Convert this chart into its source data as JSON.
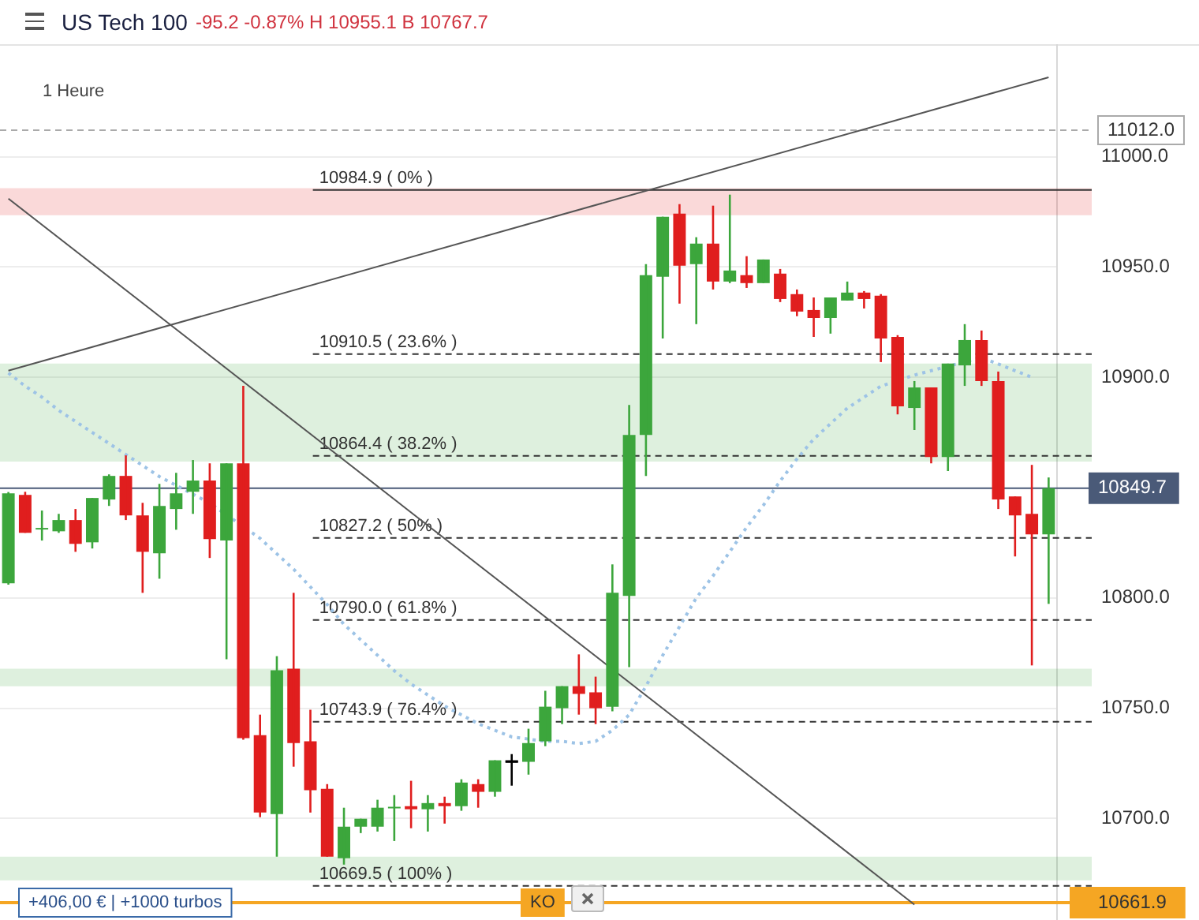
{
  "chart_data": {
    "type": "candlestick",
    "title": "US Tech 100",
    "subtitle": "-95.2  -0.87% H 10955.1 B 10767.7",
    "categories": [
      null,
      null,
      null,
      null,
      null,
      null,
      null,
      null,
      null,
      null,
      null,
      null,
      null,
      null,
      null,
      null,
      null,
      null,
      null,
      null,
      null,
      null,
      null,
      null,
      null,
      null,
      null,
      null,
      null,
      null,
      null,
      null,
      null,
      null,
      null,
      null,
      null,
      null,
      null,
      null,
      null,
      null,
      null,
      null,
      null,
      null,
      null,
      null,
      null,
      null,
      null,
      null,
      null,
      null,
      null,
      null,
      null,
      null,
      null,
      null,
      null,
      null,
      null
    ],
    "ohlc": [
      [
        10806.6,
        10848.0,
        10806.0,
        10847.4
      ],
      [
        10846.7,
        10848.1,
        10829.5,
        10829.5
      ],
      [
        10831.0,
        10839.6,
        10826.0,
        10831.5
      ],
      [
        10830.2,
        10838.1,
        10829.5,
        10835.3
      ],
      [
        10835.3,
        10840.3,
        10820.9,
        10824.5
      ],
      [
        10825.2,
        10845.3,
        10822.4,
        10845.3
      ],
      [
        10844.6,
        10856.0,
        10841.7,
        10855.3
      ],
      [
        10855.3,
        10864.6,
        10835.3,
        10837.4
      ],
      [
        10837.4,
        10843.1,
        10802.3,
        10820.9
      ],
      [
        10820.2,
        10851.7,
        10808.7,
        10841.7
      ],
      [
        10840.3,
        10856.7,
        10830.9,
        10847.4
      ],
      [
        10848.1,
        10862.5,
        10838.1,
        10853.2
      ],
      [
        10853.2,
        10861.0,
        10818.1,
        10826.7
      ],
      [
        10826.0,
        10861.0,
        10772.2,
        10861.0
      ],
      [
        10861.0,
        10896.1,
        10735.7,
        10736.4
      ],
      [
        10737.8,
        10747.1,
        10700.6,
        10702.7
      ],
      [
        10702.0,
        10773.6,
        10682.7,
        10767.2
      ],
      [
        10767.9,
        10802.3,
        10723.5,
        10734.2
      ],
      [
        10735.0,
        10749.3,
        10702.7,
        10712.8
      ],
      [
        10713.5,
        10715.6,
        10682.7,
        10682.7
      ],
      [
        10682.0,
        10704.9,
        10679.1,
        10696.3
      ],
      [
        10696.3,
        10699.9,
        10693.4,
        10699.9
      ],
      [
        10696.3,
        10708.5,
        10694.1,
        10704.9
      ],
      [
        10704.6,
        10710.6,
        10689.8,
        10705.0
      ],
      [
        10705.6,
        10717.1,
        10695.6,
        10704.2
      ],
      [
        10704.2,
        10710.6,
        10694.1,
        10707.0
      ],
      [
        10707.0,
        10709.9,
        10697.7,
        10705.6
      ],
      [
        10705.6,
        10717.8,
        10703.5,
        10716.3
      ],
      [
        10715.6,
        10717.8,
        10704.9,
        10712.1
      ],
      [
        10712.1,
        10726.4,
        10709.9,
        10726.4
      ],
      [
        10725.7,
        10729.2,
        10714.9,
        10725.7
      ],
      [
        10725.7,
        10740.7,
        10719.9,
        10734.2
      ],
      [
        10735.0,
        10757.9,
        10732.8,
        10750.7
      ],
      [
        10750.0,
        10760.0,
        10742.8,
        10760.0
      ],
      [
        10760.0,
        10774.4,
        10747.1,
        10756.5
      ],
      [
        10757.2,
        10764.3,
        10742.8,
        10750.0
      ],
      [
        10750.7,
        10815.2,
        10748.6,
        10802.3
      ],
      [
        10800.9,
        10887.5,
        10768.6,
        10873.9
      ],
      [
        10873.9,
        10951.3,
        10855.3,
        10946.3
      ],
      [
        10945.6,
        10972.8,
        10917.6,
        10972.8
      ],
      [
        10974.2,
        10978.5,
        10933.4,
        10950.6
      ],
      [
        10951.3,
        10963.5,
        10924.1,
        10960.6
      ],
      [
        10960.6,
        10977.8,
        10939.8,
        10943.4
      ],
      [
        10943.4,
        10982.8,
        10942.7,
        10948.4
      ],
      [
        10946.3,
        10954.9,
        10940.5,
        10942.7
      ],
      [
        10942.7,
        10953.4,
        10942.7,
        10953.4
      ],
      [
        10947.0,
        10949.1,
        10934.1,
        10935.5
      ],
      [
        10937.7,
        10939.8,
        10927.7,
        10929.8
      ],
      [
        10930.5,
        10936.2,
        10918.3,
        10926.9
      ],
      [
        10926.9,
        10936.2,
        10919.8,
        10936.2
      ],
      [
        10934.8,
        10943.4,
        10934.8,
        10938.4
      ],
      [
        10938.4,
        10939.1,
        10931.2,
        10935.5
      ],
      [
        10937.0,
        10937.7,
        10906.9,
        10917.6
      ],
      [
        10918.3,
        10919.1,
        10883.2,
        10886.8
      ],
      [
        10886.1,
        10898.3,
        10876.1,
        10895.4
      ],
      [
        10895.4,
        10895.4,
        10861.0,
        10863.9
      ],
      [
        10863.9,
        10906.2,
        10857.5,
        10906.2
      ],
      [
        10905.4,
        10924.1,
        10896.1,
        10916.9
      ],
      [
        10916.9,
        10921.2,
        10896.1,
        10898.3
      ],
      [
        10898.3,
        10902.6,
        10840.3,
        10844.6
      ],
      [
        10846.0,
        10846.0,
        10818.8,
        10837.4
      ],
      [
        10838.1,
        10860.3,
        10769.4,
        10828.8
      ],
      [
        10828.8,
        10854.6,
        10797.3,
        10849.7
      ]
    ],
    "colors": [
      "#3ca63c",
      "#e01e1e",
      "#3ca63c",
      "#3ca63c",
      "#e01e1e",
      "#3ca63c",
      "#3ca63c",
      "#e01e1e",
      "#e01e1e",
      "#3ca63c",
      "#3ca63c",
      "#3ca63c",
      "#e01e1e",
      "#3ca63c",
      "#e01e1e",
      "#e01e1e",
      "#3ca63c",
      "#e01e1e",
      "#e01e1e",
      "#e01e1e",
      "#3ca63c",
      "#3ca63c",
      "#3ca63c",
      "#3ca63c",
      "#e01e1e",
      "#3ca63c",
      "#e01e1e",
      "#3ca63c",
      "#e01e1e",
      "#3ca63c",
      "#000000",
      "#3ca63c",
      "#3ca63c",
      "#3ca63c",
      "#e01e1e",
      "#e01e1e",
      "#3ca63c",
      "#3ca63c",
      "#3ca63c",
      "#3ca63c",
      "#e01e1e",
      "#3ca63c",
      "#e01e1e",
      "#3ca63c",
      "#e01e1e",
      "#3ca63c",
      "#e01e1e",
      "#e01e1e",
      "#e01e1e",
      "#3ca63c",
      "#3ca63c",
      "#e01e1e",
      "#e01e1e",
      "#e01e1e",
      "#3ca63c",
      "#e01e1e",
      "#3ca63c",
      "#3ca63c",
      "#e01e1e",
      "#e01e1e",
      "#e01e1e",
      "#e01e1e",
      "#3ca63c"
    ],
    "series": [
      {
        "type": "line",
        "color": "#555555",
        "line_style": "solid",
        "values": [
          10903,
          null,
          null,
          null,
          null,
          null,
          null,
          null,
          null,
          null,
          null,
          null,
          null,
          null,
          null,
          null,
          null,
          null,
          null,
          null,
          null,
          null,
          null,
          null,
          null,
          null,
          null,
          null,
          null,
          null,
          null,
          null,
          null,
          null,
          null,
          null,
          null,
          null,
          null,
          null,
          null,
          null,
          null,
          null,
          null,
          null,
          null,
          null,
          null,
          null,
          null,
          null,
          null,
          null,
          null,
          null,
          null,
          null,
          null,
          null,
          null,
          null,
          11036
        ]
      },
      {
        "type": "line",
        "color": "#555555",
        "line_style": "solid",
        "values": [
          10981,
          null,
          null,
          null,
          null,
          null,
          null,
          null,
          null,
          null,
          null,
          null,
          null,
          null,
          null,
          null,
          null,
          null,
          null,
          null,
          null,
          null,
          null,
          null,
          null,
          null,
          null,
          null,
          null,
          null,
          null,
          null,
          null,
          null,
          null,
          null,
          null,
          null,
          null,
          null,
          null,
          null,
          null,
          null,
          null,
          null,
          null,
          null,
          null,
          null,
          null,
          null,
          null,
          null,
          10661,
          null,
          null,
          null,
          null,
          null,
          null,
          null,
          null
        ]
      },
      {
        "type": "line",
        "color": "#9dc3e6",
        "line_style": "dotted",
        "values": [
          10902,
          10896,
          10891,
          10885,
          10880,
          10875,
          10870,
          10865,
          10860,
          10855,
          10851,
          10847,
          10843,
          null,
          null,
          10827,
          10820,
          10813,
          10805,
          10797,
          10788,
          10781,
          10774,
          10767,
          10761,
          10756,
          10751,
          10747,
          10743,
          10740,
          10737,
          10736,
          10735,
          10735,
          10734,
          10735,
          10740,
          10747,
          10760,
          10774,
          10787,
          10800,
          10810,
          10821,
          10832,
          10842,
          10853,
          10863,
          10872,
          10879,
          10886,
          10891,
          10896,
          null,
          10901,
          10903,
          10905,
          null,
          10909,
          10906,
          10903,
          10900,
          null
        ]
      }
    ],
    "ylim": [
      10654,
      11051
    ],
    "yticks": [
      {
        "value": 10700,
        "label": "10700.0"
      },
      {
        "value": 10750,
        "label": "10750.0"
      },
      {
        "value": 10800,
        "label": "10800.0"
      },
      {
        "value": 10900,
        "label": "10900.0"
      },
      {
        "value": 10950,
        "label": "10950.0"
      },
      {
        "value": 11000,
        "label": "11000.0"
      }
    ],
    "grid": "y",
    "tick_labels": "y",
    "marker": "none",
    "bands": [
      {
        "axis": "y",
        "from": 10861.8,
        "to": 10906.2,
        "color": "#3ca63c"
      },
      {
        "axis": "y",
        "from": 10973.5,
        "to": 10985.7,
        "color": "#e01e1e"
      },
      {
        "axis": "y",
        "from": 10760.0,
        "to": 10767.9,
        "color": "#3ca63c"
      },
      {
        "axis": "y",
        "from": 10672.0,
        "to": 10682.7,
        "color": "#3ca63c"
      }
    ],
    "ref_lines": [
      {
        "axis": "y",
        "value": 10984.9,
        "label": "10984.9 ( 0% )",
        "color": "#333333",
        "line_style": "solid"
      },
      {
        "axis": "y",
        "value": 10910.5,
        "label": "10910.5 ( 23.6% )",
        "color": "#333333",
        "line_style": "dashed"
      },
      {
        "axis": "y",
        "value": 10864.4,
        "label": "10864.4 ( 38.2% )",
        "color": "#333333",
        "line_style": "dashed"
      },
      {
        "axis": "y",
        "value": 10827.2,
        "label": "10827.2 ( 50% )",
        "color": "#333333",
        "line_style": "dashed"
      },
      {
        "axis": "y",
        "value": 10790.0,
        "label": "10790.0 ( 61.8% )",
        "color": "#333333",
        "line_style": "dashed"
      },
      {
        "axis": "y",
        "value": 10743.9,
        "label": "10743.9 ( 76.4% )",
        "color": "#333333",
        "line_style": "dashed"
      },
      {
        "axis": "y",
        "value": 10669.5,
        "label": "10669.5 ( 100% )",
        "color": "#333333",
        "line_style": "dashed"
      },
      {
        "axis": "y",
        "value": 11012.0,
        "label": "11012.0",
        "color": "#aaaaaa",
        "line_style": "dashed"
      },
      {
        "axis": "y",
        "value": 10849.7,
        "label": "10849.7",
        "color": "#4a5a78",
        "line_style": "solid"
      },
      {
        "axis": "y",
        "value": 10661.9,
        "label": "10661.9",
        "color": "#f5a623",
        "line_style": "solid"
      }
    ],
    "annotations": [
      "1 Heure",
      "+406,00 € | +1000 turbos",
      "KO"
    ]
  }
}
